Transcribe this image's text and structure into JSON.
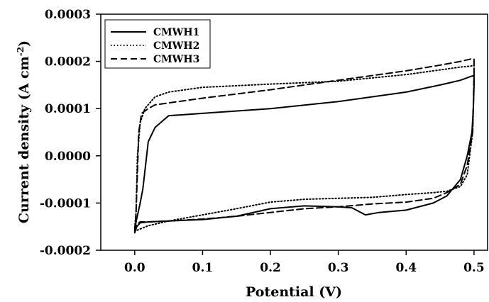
{
  "chart_data": {
    "type": "line",
    "title": "",
    "xlabel": "Potential (V)",
    "ylabel_main": "Current density (A cm",
    "ylabel_sup": "-2",
    "ylabel_close": ")",
    "xlim": [
      -0.05,
      0.52
    ],
    "ylim": [
      -0.0002,
      0.0003
    ],
    "xticks": [
      0.0,
      0.1,
      0.2,
      0.3,
      0.4,
      0.5
    ],
    "xtick_labels": [
      "0.0",
      "0.1",
      "0.2",
      "0.3",
      "0.4",
      "0.5"
    ],
    "yticks": [
      -0.0002,
      -0.0001,
      0.0,
      0.0001,
      0.0002,
      0.0003
    ],
    "ytick_labels": [
      "-0.0002",
      "-0.0001",
      "0.0000",
      "0.0001",
      "0.0002",
      "0.0003"
    ],
    "grid": false,
    "legend_position": "top-left",
    "series": [
      {
        "name": "CMWH1",
        "style": "solid",
        "x": [
          0.0,
          0.002,
          0.008,
          0.012,
          0.02,
          0.03,
          0.05,
          0.1,
          0.2,
          0.3,
          0.4,
          0.45,
          0.48,
          0.495,
          0.5,
          0.5,
          0.499,
          0.497,
          0.49,
          0.48,
          0.46,
          0.44,
          0.4,
          0.36,
          0.34,
          0.32,
          0.3,
          0.25,
          0.2,
          0.15,
          0.1,
          0.05,
          0.02,
          0.008,
          0.003,
          0.0
        ],
        "y": [
          -0.000163,
          -0.00014,
          -0.0001,
          -7e-05,
          3e-05,
          6e-05,
          8.5e-05,
          9e-05,
          0.0001,
          0.000115,
          0.000135,
          0.00015,
          0.00016,
          0.000168,
          0.00017,
          0.00015,
          0.0001,
          5e-05,
          0.0,
          -5e-05,
          -8.5e-05,
          -0.0001,
          -0.000115,
          -0.00012,
          -0.000125,
          -0.00011,
          -0.000108,
          -0.000106,
          -0.000112,
          -0.000128,
          -0.000135,
          -0.000138,
          -0.00014,
          -0.000142,
          -0.00015,
          -0.000163
        ]
      },
      {
        "name": "CMWH2",
        "style": "dotted",
        "x": [
          0.0,
          0.002,
          0.004,
          0.008,
          0.015,
          0.03,
          0.05,
          0.1,
          0.2,
          0.3,
          0.4,
          0.45,
          0.48,
          0.495,
          0.5,
          0.5,
          0.498,
          0.49,
          0.48,
          0.46,
          0.44,
          0.4,
          0.35,
          0.3,
          0.25,
          0.2,
          0.15,
          0.1,
          0.05,
          0.02,
          0.008,
          0.003,
          0.0
        ],
        "y": [
          -0.000152,
          -0.00012,
          0.0,
          7e-05,
          0.0001,
          0.000125,
          0.000135,
          0.000145,
          0.000152,
          0.000158,
          0.000172,
          0.000182,
          0.000188,
          0.00019,
          0.000192,
          0.00015,
          5e-05,
          -4e-05,
          -6.5e-05,
          -7.5e-05,
          -7.8e-05,
          -8.2e-05,
          -8.8e-05,
          -9e-05,
          -9.2e-05,
          -9.8e-05,
          -0.000112,
          -0.000125,
          -0.000138,
          -0.000148,
          -0.000155,
          -0.000158,
          -0.000152
        ]
      },
      {
        "name": "CMWH3",
        "style": "dashed",
        "x": [
          0.0,
          0.002,
          0.006,
          0.01,
          0.02,
          0.03,
          0.05,
          0.1,
          0.2,
          0.3,
          0.4,
          0.45,
          0.48,
          0.495,
          0.5,
          0.5,
          0.498,
          0.49,
          0.48,
          0.46,
          0.44,
          0.4,
          0.35,
          0.3,
          0.25,
          0.2,
          0.15,
          0.1,
          0.05,
          0.02,
          0.008,
          0.003,
          0.0
        ],
        "y": [
          -0.00016,
          -0.00012,
          5e-05,
          9e-05,
          0.0001,
          0.000108,
          0.000112,
          0.000122,
          0.00014,
          0.00016,
          0.00018,
          0.000192,
          0.0002,
          0.000205,
          0.000205,
          0.00017,
          5e-05,
          -2e-05,
          -6e-05,
          -7.8e-05,
          -9e-05,
          -9.8e-05,
          -0.000102,
          -0.000108,
          -0.000112,
          -0.00012,
          -0.000128,
          -0.000134,
          -0.000138,
          -0.00014,
          -0.00014,
          -0.000145,
          -0.00016
        ]
      }
    ]
  },
  "colors": {
    "line": "#000000",
    "background": "#ffffff"
  }
}
